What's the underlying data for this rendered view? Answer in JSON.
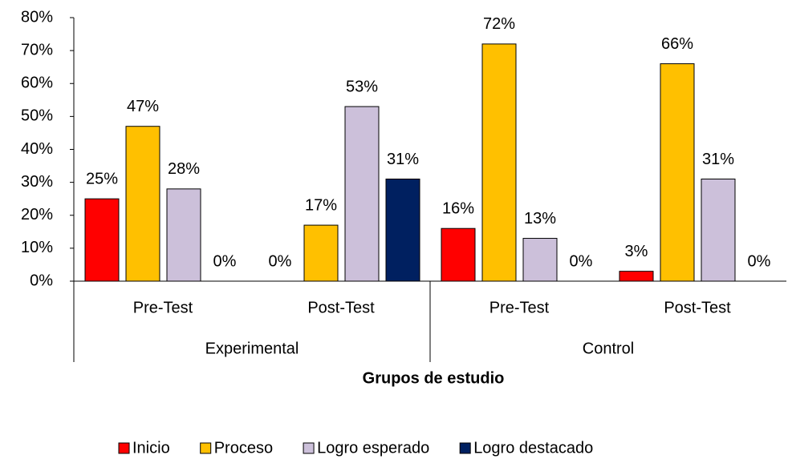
{
  "chart_data": {
    "type": "bar",
    "axis_title": "Grupos de estudio",
    "groups": [
      {
        "name": "Experimental",
        "categories": [
          "Pre-Test",
          "Post-Test"
        ]
      },
      {
        "name": "Control",
        "categories": [
          "Pre-Test",
          "Post-Test"
        ]
      }
    ],
    "series": [
      {
        "name": "Inicio",
        "color": "#ff0000",
        "values": [
          25,
          0,
          16,
          3
        ],
        "value_labels": [
          "25%",
          "0%",
          "16%",
          "3%"
        ]
      },
      {
        "name": "Proceso",
        "color": "#ffc000",
        "values": [
          47,
          17,
          72,
          66
        ],
        "value_labels": [
          "47%",
          "17%",
          "72%",
          "66%"
        ]
      },
      {
        "name": "Logro esperado",
        "color": "#ccc0da",
        "values": [
          28,
          53,
          13,
          31
        ],
        "value_labels": [
          "28%",
          "53%",
          "13%",
          "31%"
        ]
      },
      {
        "name": "Logro destacado",
        "color": "#002060",
        "values": [
          0,
          31,
          0,
          0
        ],
        "value_labels": [
          "0%",
          "31%",
          "0%",
          "0%"
        ]
      }
    ],
    "ylim": [
      0,
      80
    ],
    "yticks": [
      {
        "value": 0,
        "label": "0%"
      },
      {
        "value": 10,
        "label": "10%"
      },
      {
        "value": 20,
        "label": "20%"
      },
      {
        "value": 30,
        "label": "30%"
      },
      {
        "value": 40,
        "label": "40%"
      },
      {
        "value": 50,
        "label": "50%"
      },
      {
        "value": 60,
        "label": "60%"
      },
      {
        "value": 70,
        "label": "70%"
      },
      {
        "value": 80,
        "label": "80%"
      }
    ],
    "legend": "bottom"
  }
}
